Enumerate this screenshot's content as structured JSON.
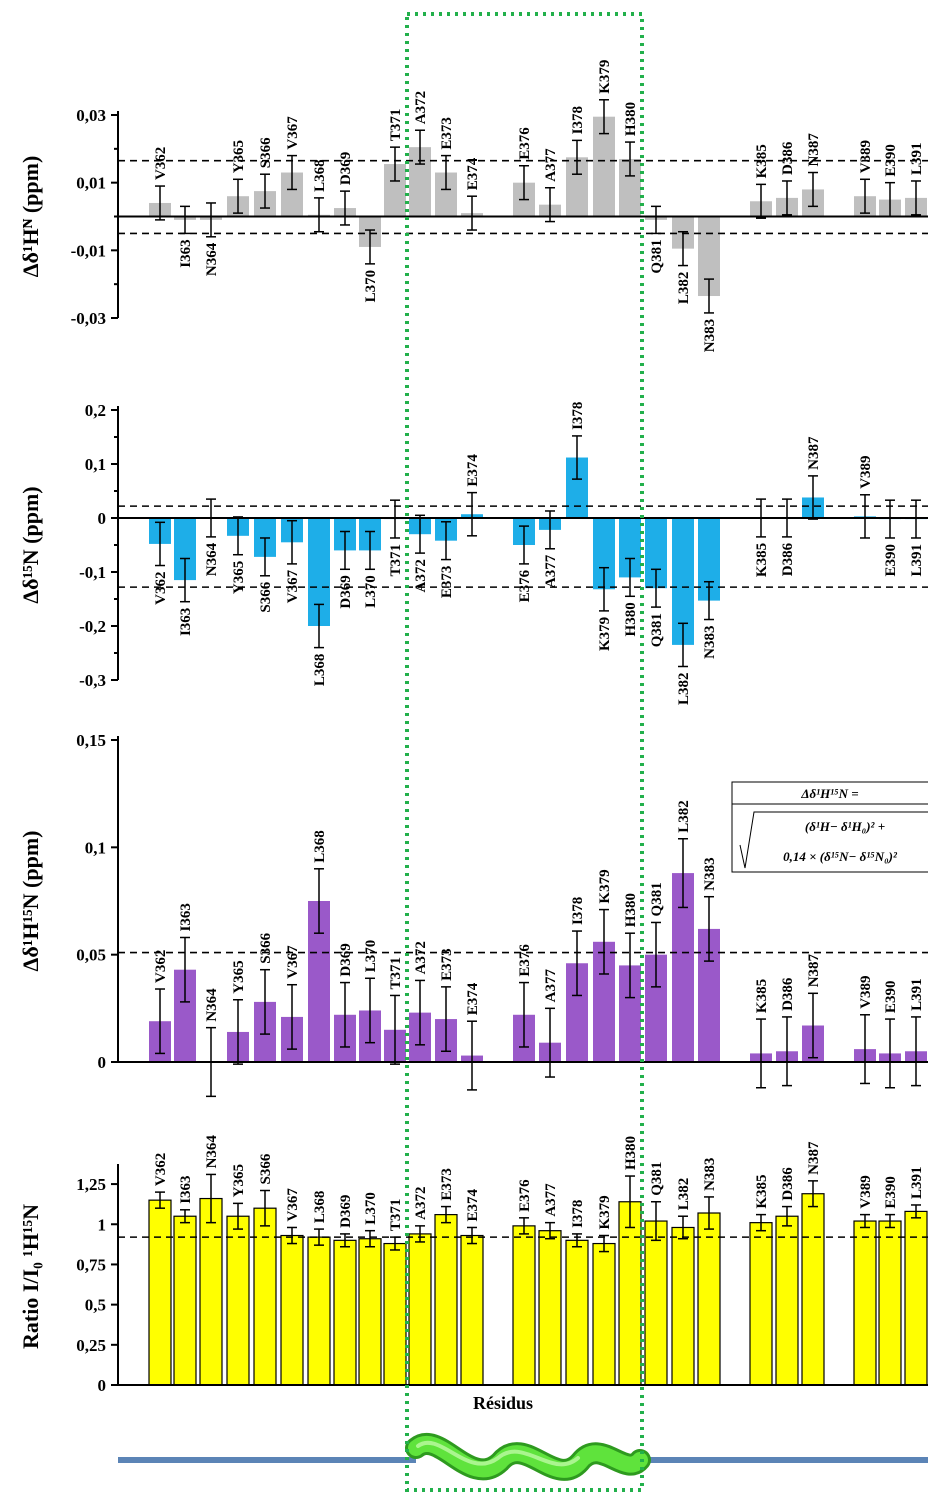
{
  "colors": {
    "hn": "#bfbfbf",
    "n15": "#1eaee8",
    "comb": "#9a59c9",
    "ratio": "#ffff00",
    "highlight": "#22b04b",
    "helix": "#5fe33c",
    "chain": "#5b84b6"
  },
  "residues": [
    "V362",
    "I363",
    "N364",
    "Y365",
    "S366",
    "V367",
    "L368",
    "D369",
    "L370",
    "T371",
    "A372",
    "E373",
    "E374",
    "E376",
    "A377",
    "I378",
    "K379",
    "H380",
    "Q381",
    "L382",
    "N383",
    "K385",
    "D386",
    "N387",
    "V389",
    "E390",
    "L391"
  ],
  "xlabel": "Résidus",
  "helix_icon": "alpha-helix-icon",
  "formula": {
    "line1": "Δδ¹H¹⁵N =",
    "line2": "(δ¹H− δ¹H₀)² +",
    "line3": "0,14 × (δ¹⁵N− δ¹⁵N₀)²"
  },
  "chart_data": [
    {
      "type": "bar",
      "ylabel": "Δδ¹Hᴺ (ppm)",
      "ylim": [
        -0.03,
        0.03
      ],
      "yticks": [
        -0.03,
        -0.01,
        0.01,
        0.03
      ],
      "ytick_labels": [
        "-0,03",
        "-0,01",
        "0,01",
        "0,03"
      ],
      "threshold_lines": [
        0.0165,
        -0.005
      ],
      "values": [
        0.004,
        -0.001,
        -0.001,
        0.006,
        0.0075,
        0.013,
        0.0005,
        0.0025,
        -0.009,
        0.0155,
        0.0205,
        0.013,
        0.001,
        0.01,
        0.0035,
        0.0175,
        0.0295,
        0.017,
        -0.001,
        -0.0095,
        -0.0235,
        0.0045,
        0.0055,
        0.008,
        0.006,
        0.005,
        0.0055
      ],
      "errors": [
        0.005,
        0.004,
        0.005,
        0.005,
        0.005,
        0.005,
        0.005,
        0.005,
        0.005,
        0.005,
        0.005,
        0.005,
        0.005,
        0.005,
        0.005,
        0.005,
        0.005,
        0.005,
        0.004,
        0.005,
        0.005,
        0.005,
        0.005,
        0.005,
        0.005,
        0.005,
        0.005
      ]
    },
    {
      "type": "bar",
      "ylabel": "Δδ¹⁵N (ppm)",
      "ylim": [
        -0.3,
        0.2
      ],
      "yticks": [
        -0.3,
        -0.2,
        -0.1,
        0,
        0.1,
        0.2
      ],
      "ytick_labels": [
        "-0,3",
        "-0,2",
        "-0,1",
        "0",
        "0,1",
        "0,2"
      ],
      "threshold_lines": [
        0.022,
        -0.128
      ],
      "values": [
        -0.048,
        -0.115,
        0,
        -0.033,
        -0.072,
        -0.045,
        -0.2,
        -0.06,
        -0.06,
        -0.002,
        -0.03,
        -0.042,
        0.007,
        -0.05,
        -0.022,
        0.112,
        -0.132,
        -0.11,
        -0.13,
        -0.235,
        -0.153,
        0,
        0,
        0.038,
        0.003,
        -0.002,
        -0.002
      ],
      "errors": [
        0.04,
        0.04,
        0.035,
        0.035,
        0.035,
        0.04,
        0.04,
        0.035,
        0.035,
        0.035,
        0.035,
        0.035,
        0.04,
        0.035,
        0.035,
        0.04,
        0.04,
        0.035,
        0.035,
        0.04,
        0.035,
        0.035,
        0.035,
        0.04,
        0.04,
        0.035,
        0.035
      ]
    },
    {
      "type": "bar",
      "ylabel": "Δδ¹H¹⁵N (ppm)",
      "ylim": [
        0,
        0.15
      ],
      "yticks": [
        0,
        0.05,
        0.1,
        0.15
      ],
      "ytick_labels": [
        "0",
        "0,05",
        "0,1",
        "0,15"
      ],
      "threshold_lines": [
        0.051
      ],
      "values": [
        0.019,
        0.043,
        0,
        0.014,
        0.028,
        0.021,
        0.075,
        0.022,
        0.024,
        0.015,
        0.023,
        0.02,
        0.003,
        0.022,
        0.009,
        0.046,
        0.056,
        0.045,
        0.05,
        0.088,
        0.062,
        0.004,
        0.005,
        0.017,
        0.006,
        0.004,
        0.005
      ],
      "errors": [
        0.015,
        0.015,
        0.016,
        0.015,
        0.015,
        0.015,
        0.015,
        0.015,
        0.015,
        0.016,
        0.015,
        0.015,
        0.016,
        0.015,
        0.016,
        0.015,
        0.015,
        0.015,
        0.015,
        0.016,
        0.015,
        0.016,
        0.016,
        0.015,
        0.016,
        0.016,
        0.016
      ]
    },
    {
      "type": "bar",
      "ylabel": "Ratio I/I₀ ¹H¹⁵N",
      "ylim": [
        0,
        1.35
      ],
      "yticks": [
        0,
        0.25,
        0.5,
        0.75,
        1,
        1.25
      ],
      "ytick_labels": [
        "0",
        "0,25",
        "0,5",
        "0,75",
        "1",
        "1,25"
      ],
      "threshold_lines": [
        0.92
      ],
      "values": [
        1.15,
        1.05,
        1.16,
        1.05,
        1.1,
        0.93,
        0.92,
        0.9,
        0.91,
        0.88,
        0.94,
        1.06,
        0.93,
        0.99,
        0.96,
        0.9,
        0.88,
        1.14,
        1.02,
        0.98,
        1.07,
        1.01,
        1.05,
        1.19,
        1.02,
        1.02,
        1.08
      ],
      "errors": [
        0.05,
        0.04,
        0.15,
        0.08,
        0.11,
        0.05,
        0.05,
        0.04,
        0.05,
        0.04,
        0.05,
        0.05,
        0.05,
        0.05,
        0.05,
        0.04,
        0.05,
        0.16,
        0.12,
        0.07,
        0.1,
        0.05,
        0.06,
        0.08,
        0.04,
        0.04,
        0.04
      ]
    }
  ]
}
